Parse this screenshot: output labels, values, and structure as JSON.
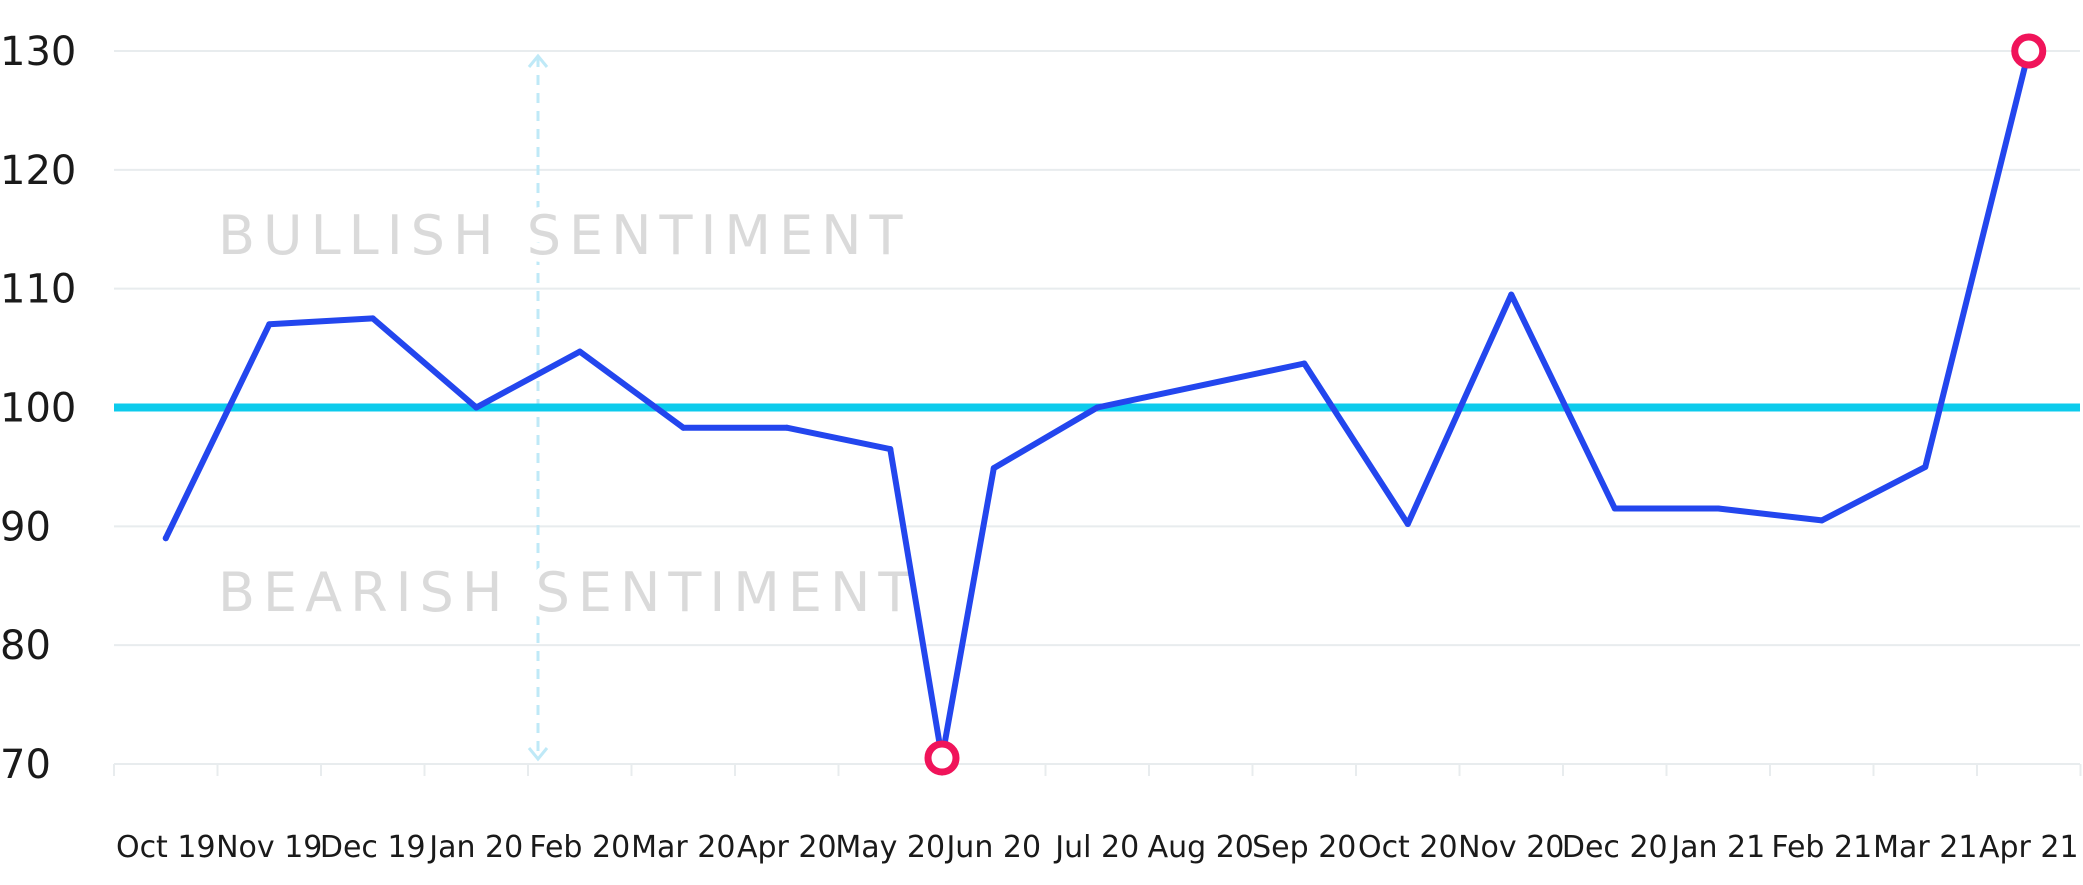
{
  "chart_data": {
    "type": "line",
    "title": "",
    "xlabel": "",
    "ylabel": "",
    "categories": [
      "Oct 19",
      "Nov 19",
      "Dec 19",
      "Jan 20",
      "Feb 20",
      "Mar 20",
      "Apr 20",
      "May 20",
      "Jun 20",
      "Jul 20",
      "Aug 20",
      "Sep 20",
      "Oct 20",
      "Nov 20",
      "Dec 20",
      "Jan 21",
      "Feb 21",
      "Mar 21",
      "Apr 21"
    ],
    "points": [
      {
        "x": "Oct 19",
        "y": 89
      },
      {
        "x": "Nov 19",
        "y": 107
      },
      {
        "x": "Dec 19",
        "y": 107.5
      },
      {
        "x": "Jan 20",
        "y": 100
      },
      {
        "x": "Feb 20",
        "y": 104.7
      },
      {
        "x": "Mar 20",
        "y": 98.3
      },
      {
        "x": "Apr 20",
        "y": 98.3
      },
      {
        "x": "May 20",
        "y": 96.5
      },
      {
        "x": "May 20 – Jun 20",
        "y": 70.5,
        "highlight": true
      },
      {
        "x": "Jun 20",
        "y": 94.9
      },
      {
        "x": "Jul 20",
        "y": 100
      },
      {
        "x": "Sep 20",
        "y": 103.7
      },
      {
        "x": "Oct 20",
        "y": 90.2
      },
      {
        "x": "Nov 20",
        "y": 109.5
      },
      {
        "x": "Dec 20",
        "y": 91.5
      },
      {
        "x": "Jan 21",
        "y": 91.5
      },
      {
        "x": "Feb 21",
        "y": 90.5
      },
      {
        "x": "Mar 21",
        "y": 95
      },
      {
        "x": "Apr 21",
        "y": 130,
        "highlight": true
      }
    ],
    "ylim": [
      70,
      130
    ],
    "yticks": [
      70,
      80,
      90,
      100,
      110,
      120,
      130
    ],
    "grid": true,
    "reference_line": 100,
    "annotations": [
      {
        "text": "BULLISH SENTIMENT",
        "region": "above"
      },
      {
        "text": "BEARISH SENTIMENT",
        "region": "below"
      }
    ],
    "colors": {
      "series": "#2346ee",
      "reference": "#0ccbec",
      "highlight": "#f0145a",
      "grid": "#e8ecee",
      "annotation": "#dadada",
      "arrow": "#bfe9f7"
    }
  }
}
